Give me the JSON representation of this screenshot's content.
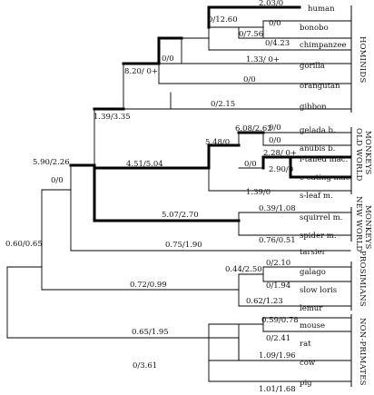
{
  "taxa": {
    "human": "human",
    "bonobo": "bonobo",
    "chimpanzee": "chimpanzee",
    "gorilla": "gorilla",
    "orangutan": "orangutan",
    "gibbon": "gibbon",
    "gelada": "gelada b.",
    "anubis": "anubis b.",
    "ltailed": "l-tailed mac.",
    "ceating": "c-eating mac.",
    "sleaf": "s-leaf m.",
    "squirrel": "squirrel m.",
    "spider": "spider m.",
    "tarsier": "tarsier",
    "galago": "galago",
    "slowloris": "slow loris",
    "lemur": "lemur",
    "mouse": "mouse",
    "rat": "rat",
    "cow": "cow",
    "pig": "pig"
  },
  "groups": {
    "hominids": "HOMINIDS",
    "oldworld_1": "OLD WORLD",
    "oldworld_2": "MONKEYS",
    "newworld_1": "NEW WORLD",
    "newworld_2": "MONKEYS",
    "prosimians": "PROSIMIANS",
    "nonprimates": "NON-PRIMATES"
  },
  "branch_labels": {
    "human": "2.03/0",
    "bonobo": "0/0",
    "chimpanzee": "0/4.23",
    "bonobo_chimp": "0/7.56",
    "human_panins": "0/12.60",
    "gorilla": "1.33/ 0+",
    "african_apes": "0/0",
    "orangutan": "0/0",
    "great_apes": "8.20/ 0+",
    "gibbon": "0/2.15",
    "hominoids": "1.39/3.35",
    "gelada": "0/0",
    "anubis": "0/0",
    "baboons": "6.08/2.62",
    "ltailed": "2.28/ 0+",
    "ceating": "2.90/0",
    "macaques": "0/0",
    "papionini": "5.48/0",
    "sleaf": "1.39/0",
    "old_world": "4.51/5.04",
    "catarrhini": "5.90/2.26",
    "squirrel": "0.39/1.08",
    "spider": "0.76/0.51",
    "new_world": "5.07/2.70",
    "anthropoids": "0/0",
    "tarsier": "0.75/1.90",
    "galago": "0/2.10",
    "slowloris": "0/1.94",
    "lorisiformes": "0.44/2.50",
    "lemur": "0.62/1.23",
    "prosimians": "0.72/0.99",
    "mouse": "0.59/0.78",
    "rat": "0/2.41",
    "rodents": "0.65/1.95",
    "cow": "1.09/1.96",
    "pig": "1.01/1.68",
    "artiodactyls": "0/3.61",
    "primates": "0.60/0.65"
  }
}
